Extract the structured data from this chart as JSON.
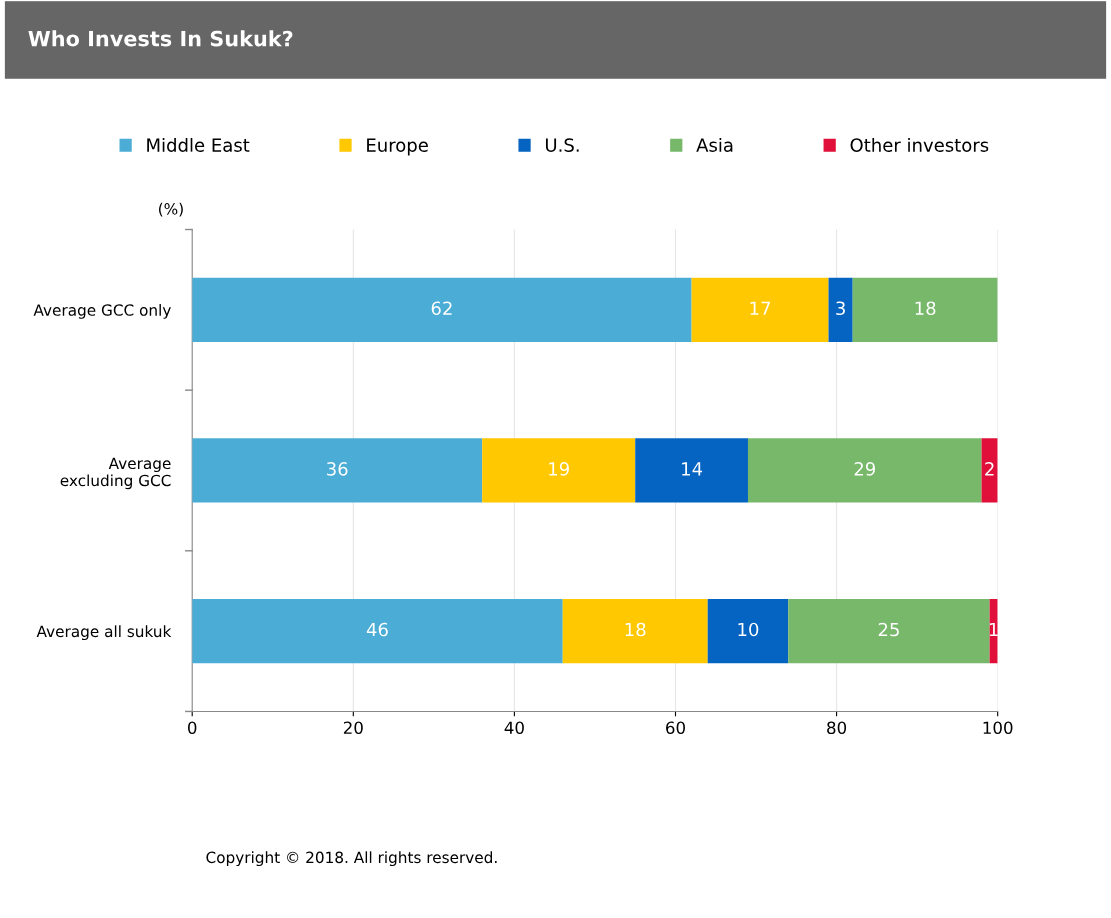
{
  "chart_data": {
    "type": "bar",
    "orientation": "horizontal",
    "stacked": true,
    "title": "Who Invests In Sukuk?",
    "xlabel": "(%)",
    "categories": [
      "Average GCC only",
      "Average\nexcluding GCC",
      "Average all sukuk"
    ],
    "series": [
      {
        "name": "Middle East",
        "color": "#4bacd6",
        "values": [
          62,
          36,
          46
        ]
      },
      {
        "name": "Europe",
        "color": "#ffc800",
        "values": [
          17,
          19,
          18
        ]
      },
      {
        "name": "U.S.",
        "color": "#0563c1",
        "values": [
          3,
          14,
          10
        ]
      },
      {
        "name": "Asia",
        "color": "#77b86a",
        "values": [
          18,
          29,
          25
        ]
      },
      {
        "name": "Other investors",
        "color": "#e0103a",
        "values": [
          null,
          2,
          1
        ]
      }
    ],
    "xlim": [
      0,
      100
    ],
    "xticks": [
      0,
      20,
      40,
      60,
      80,
      100
    ],
    "grid": "x",
    "legend": "top",
    "data_labels": true,
    "annotations": [
      "Copyright © 2018. All rights reserved."
    ]
  }
}
